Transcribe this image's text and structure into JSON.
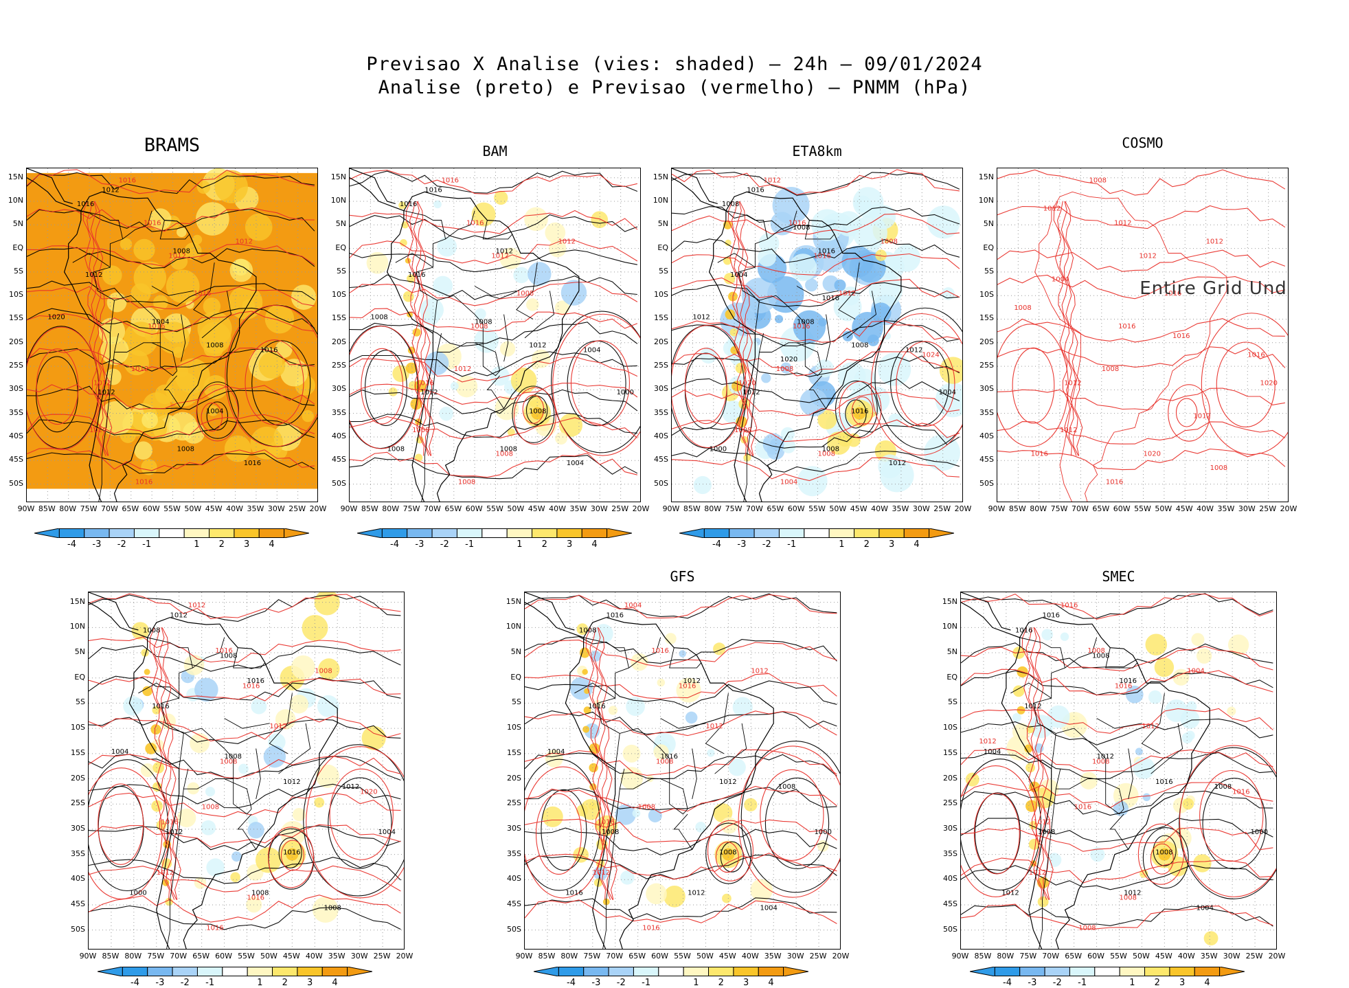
{
  "figure": {
    "title_line1": "Previsao X Analise (vies: shaded) – 24h – 09/01/2024",
    "title_line2": "Analise (preto) e Previsao (vermelho) – PNMM (hPa)"
  },
  "colors": {
    "neg4": "#2f9be8",
    "neg3": "#78b8f0",
    "neg2": "#a9d3f7",
    "neg1": "#d9f6fb",
    "pos1": "#fff7c2",
    "pos2": "#fde86d",
    "pos3": "#f9c52a",
    "pos4": "#f39b12",
    "analysis": "#000000",
    "forecast": "#e8302a",
    "grid": "#999999"
  },
  "chart_data": {
    "type": "heatmap",
    "subtype": "map-panels",
    "lon_ticks": [
      "90W",
      "85W",
      "80W",
      "75W",
      "70W",
      "65W",
      "60W",
      "55W",
      "50W",
      "45W",
      "40W",
      "35W",
      "30W",
      "25W",
      "20W"
    ],
    "lat_ticks": [
      "15N",
      "10N",
      "5N",
      "EQ",
      "5S",
      "10S",
      "15S",
      "20S",
      "25S",
      "30S",
      "35S",
      "40S",
      "45S",
      "50S"
    ],
    "lon_range": [
      -90,
      -20
    ],
    "lat_range": [
      -54,
      17
    ],
    "colorbar_labels": [
      "-4",
      "-3",
      "-2",
      "-1",
      "1",
      "2",
      "3",
      "4"
    ],
    "panels": [
      {
        "model": "BRAMS",
        "has_data": true,
        "bias": "warm",
        "labels": {
          "black": [
            "1012",
            "1008",
            "1004",
            "1012",
            "1008",
            "1016",
            "1020",
            "1016",
            "1012",
            "1008",
            "1004",
            "1016"
          ],
          "red": [
            "1016",
            "1016",
            "1012",
            "1020",
            "1016",
            "1012",
            "1016",
            "1012",
            "1016",
            "1012"
          ]
        }
      },
      {
        "model": "BAM",
        "has_data": true,
        "bias": "mixed",
        "labels": {
          "black": [
            "1016",
            "1012",
            "1008",
            "1012",
            "1008",
            "1004",
            "1008",
            "1016",
            "1016",
            "1012",
            "1008",
            "1004",
            "1000",
            "1008"
          ],
          "red": [
            "1016",
            "1008",
            "1012",
            "1008",
            "1008",
            "1012",
            "1016",
            "1012",
            "1008",
            "1016",
            "1008"
          ]
        }
      },
      {
        "model": "ETA8km",
        "has_data": true,
        "bias": "cold",
        "labels": {
          "black": [
            "1016",
            "1016",
            "1008",
            "1012",
            "1008",
            "1012",
            "1012",
            "1008",
            "1004",
            "1008",
            "1016",
            "1012",
            "1004",
            "1000",
            "1008",
            "1016",
            "1020"
          ],
          "red": [
            "1016",
            "1012",
            "1008",
            "1008",
            "1004",
            "1008",
            "1012",
            "1016",
            "1016",
            "1020",
            "1008",
            "1024"
          ]
        }
      },
      {
        "model": "COSMO",
        "has_data": false,
        "message": "Entire Grid Und",
        "bias": "none",
        "labels": {
          "black": [],
          "red": [
            "1012",
            "1016",
            "1008",
            "1012",
            "1016",
            "1012",
            "1008",
            "1012",
            "1016",
            "1012",
            "1020",
            "1016",
            "1008",
            "1012",
            "1004",
            "1016",
            "1012",
            "1008",
            "1020",
            "1016"
          ]
        }
      },
      {
        "model": "",
        "has_data": true,
        "bias": "mixed",
        "labels": {
          "black": [
            "1012",
            "1016",
            "1008",
            "1012",
            "1008",
            "1012",
            "1004",
            "1008",
            "1016",
            "1012",
            "1016",
            "1008",
            "1004",
            "1000",
            "1008"
          ],
          "red": [
            "1016",
            "1012",
            "1008",
            "1012",
            "1016",
            "1008",
            "1012",
            "1016",
            "1008",
            "1016",
            "1016",
            "1020"
          ]
        }
      },
      {
        "model": "GFS",
        "has_data": true,
        "bias": "mixed",
        "labels": {
          "black": [
            "1016",
            "1012",
            "1016",
            "1008",
            "1012",
            "1008",
            "1004",
            "1008",
            "1016",
            "1012",
            "1008",
            "1004",
            "1000",
            "1016"
          ],
          "red": [
            "1016",
            "1012",
            "1008",
            "1012",
            "1016",
            "1012",
            "1004",
            "1016",
            "1008",
            "1016"
          ]
        }
      },
      {
        "model": "SMEC",
        "has_data": true,
        "bias": "mixed",
        "labels": {
          "black": [
            "1016",
            "1016",
            "1012",
            "1008",
            "1012",
            "1008",
            "1004",
            "1016",
            "1012",
            "1016",
            "1008",
            "1004",
            "1000",
            "1012",
            "1008"
          ],
          "red": [
            "1008",
            "1012",
            "1016",
            "1012",
            "1008",
            "1004",
            "1016",
            "1016",
            "1008",
            "1012",
            "1008",
            "1016",
            "1012"
          ]
        }
      }
    ]
  }
}
